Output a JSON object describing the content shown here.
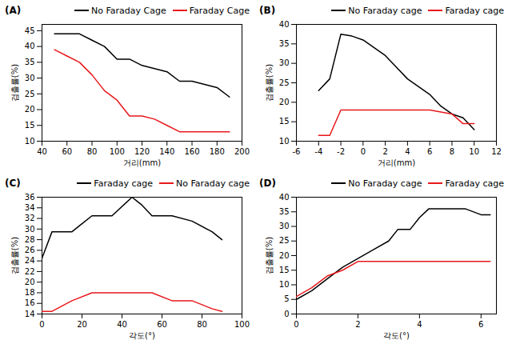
{
  "chart_data": [
    {
      "type": "line",
      "title": "(A)",
      "x_label": "거리(mm)",
      "y_label": "검출률(%)",
      "xlim": [
        40,
        200
      ],
      "xticks": [
        40,
        60,
        80,
        100,
        120,
        140,
        160,
        180,
        200
      ],
      "ylim": [
        10,
        47
      ],
      "yticks": [
        10,
        15,
        20,
        25,
        30,
        35,
        40,
        45
      ],
      "grid": false,
      "legend": "top-right",
      "series": [
        {
          "name": "No Faraday Cage",
          "color": "#000000",
          "x": [
            50,
            60,
            70,
            80,
            90,
            100,
            110,
            120,
            130,
            140,
            150,
            160,
            170,
            180,
            190
          ],
          "values": [
            44,
            44,
            44,
            42,
            40,
            36,
            36,
            34,
            33,
            32,
            29,
            29,
            28,
            27,
            24
          ]
        },
        {
          "name": "Faraday Cage",
          "color": "#e8191c",
          "x": [
            50,
            60,
            70,
            80,
            90,
            100,
            110,
            120,
            130,
            140,
            150,
            160,
            170,
            180,
            190
          ],
          "values": [
            39,
            37,
            35,
            31,
            26,
            23,
            18,
            18,
            17,
            15,
            13,
            13,
            13,
            13,
            13
          ]
        }
      ]
    },
    {
      "type": "line",
      "title": "(B)",
      "x_label": "거리(mm)",
      "y_label": "검출률(%)",
      "xlim": [
        -6,
        12
      ],
      "xticks": [
        -6,
        -4,
        -2,
        0,
        2,
        4,
        6,
        8,
        10,
        12
      ],
      "ylim": [
        10,
        40
      ],
      "yticks": [
        10,
        15,
        20,
        25,
        30,
        35,
        40
      ],
      "grid": false,
      "legend": "top-right",
      "series": [
        {
          "name": "No Faraday cage",
          "color": "#000000",
          "x": [
            -4,
            -3,
            -2,
            -1,
            0,
            1,
            2,
            3,
            4,
            5,
            6,
            7,
            8,
            9,
            10
          ],
          "values": [
            23,
            26,
            37.5,
            37,
            36,
            34,
            32,
            29,
            26,
            24,
            22,
            19,
            17,
            16,
            13
          ]
        },
        {
          "name": "Faraday cage",
          "color": "#e8191c",
          "x": [
            -4,
            -3,
            -2,
            0,
            2,
            4,
            6,
            8,
            9,
            10
          ],
          "values": [
            11.5,
            11.5,
            18,
            18,
            18,
            18,
            18,
            17,
            14.5,
            14.5
          ]
        }
      ]
    },
    {
      "type": "line",
      "title": "(C)",
      "x_label": "각도(°)",
      "y_label": "검출률(%)",
      "xlim": [
        0,
        100
      ],
      "xticks": [
        0,
        20,
        40,
        60,
        80,
        100
      ],
      "ylim": [
        14,
        36
      ],
      "yticks": [
        14,
        16,
        18,
        20,
        22,
        24,
        26,
        28,
        30,
        32,
        34,
        36
      ],
      "grid": false,
      "legend": "top-right",
      "series": [
        {
          "name": "Faraday cage",
          "color": "#000000",
          "x": [
            0,
            5,
            15,
            20,
            25,
            35,
            45,
            50,
            55,
            65,
            75,
            85,
            90
          ],
          "values": [
            24.5,
            29.5,
            29.5,
            31,
            32.5,
            32.5,
            36,
            34.5,
            32.5,
            32.5,
            31.5,
            29.5,
            28
          ]
        },
        {
          "name": "No Faraday cage",
          "color": "#e8191c",
          "x": [
            0,
            5,
            15,
            25,
            35,
            45,
            55,
            65,
            75,
            85,
            90
          ],
          "values": [
            14.5,
            14.5,
            16.5,
            18,
            18,
            18,
            18,
            16.5,
            16.5,
            15,
            14.5
          ]
        }
      ]
    },
    {
      "type": "line",
      "title": "(D)",
      "x_label": "각도(°)",
      "y_label": "검출률(%)",
      "xlim": [
        0,
        6.5
      ],
      "xticks": [
        0,
        2,
        4,
        6
      ],
      "ylim": [
        0,
        40
      ],
      "yticks": [
        0,
        5,
        10,
        15,
        20,
        25,
        30,
        35,
        40
      ],
      "grid": false,
      "legend": "top-right",
      "series": [
        {
          "name": "No Faraday cage",
          "color": "#000000",
          "x": [
            0,
            0.5,
            1,
            1.5,
            2,
            2.5,
            3,
            3.3,
            3.7,
            4,
            4.3,
            5,
            5.5,
            6,
            6.3
          ],
          "values": [
            5,
            8,
            12,
            16,
            19,
            22,
            25,
            29,
            29,
            33,
            36,
            36,
            36,
            34,
            34
          ]
        },
        {
          "name": "Faraday cage",
          "color": "#e8191c",
          "x": [
            0,
            0.5,
            1,
            1.5,
            2,
            3,
            4,
            5,
            6.3
          ],
          "values": [
            6,
            9,
            13,
            15,
            18,
            18,
            18,
            18,
            18
          ]
        }
      ]
    }
  ]
}
